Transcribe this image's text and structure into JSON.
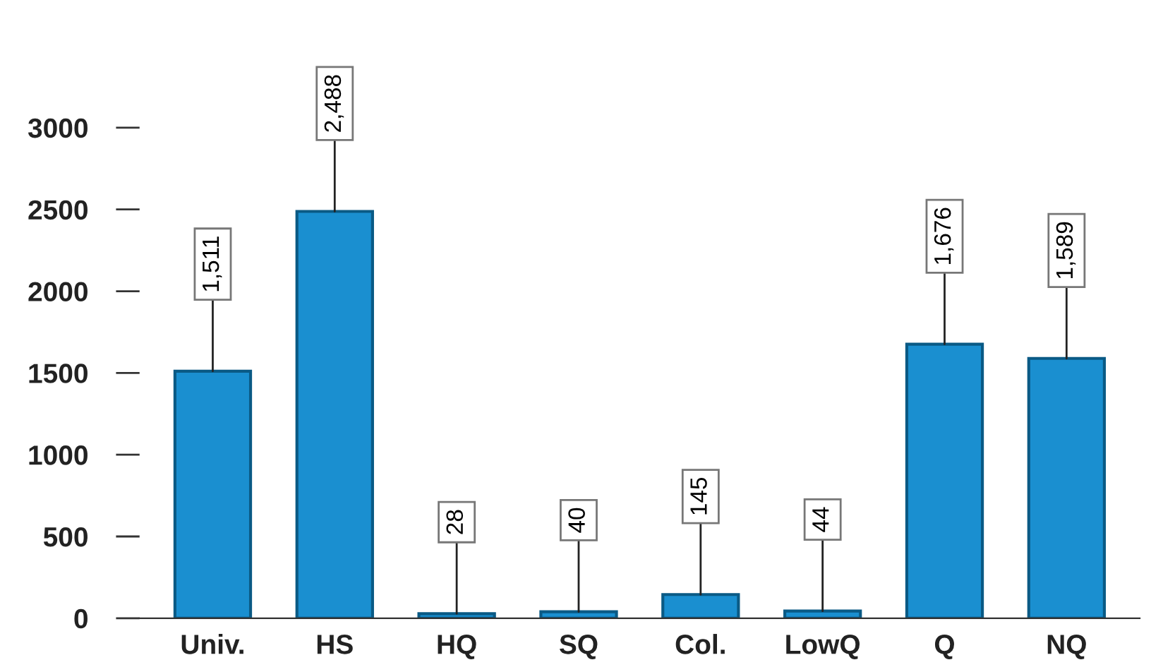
{
  "chart_data": {
    "type": "bar",
    "categories": [
      "Univ.",
      "HS",
      "HQ",
      "SQ",
      "Col.",
      "LowQ",
      "Q",
      "NQ"
    ],
    "values": [
      1511,
      2488,
      28,
      40,
      145,
      44,
      1676,
      1589
    ],
    "value_labels": [
      "1,511",
      "2,488",
      "28",
      "40",
      "145",
      "44",
      "1,676",
      "1,589"
    ],
    "color": "#1a8fd0",
    "ylim": [
      0,
      3000
    ],
    "yticks": [
      0,
      500,
      1000,
      1500,
      2000,
      2500,
      3000
    ],
    "grid": false,
    "legend": false
  }
}
